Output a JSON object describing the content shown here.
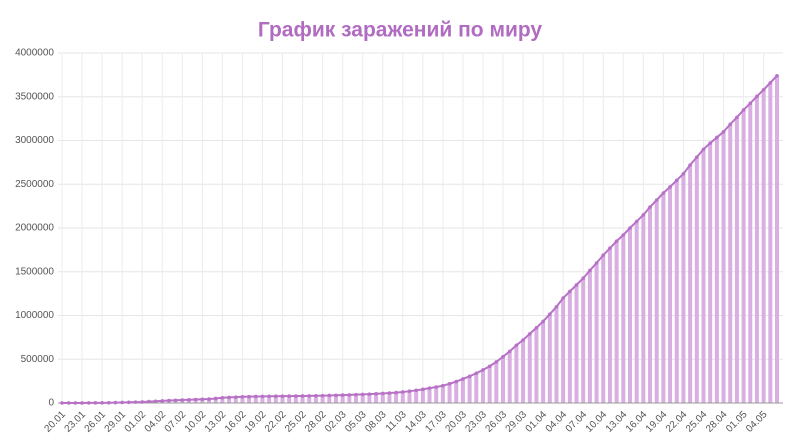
{
  "chart_data": {
    "type": "bar",
    "title": "График заражений по миру",
    "categories": [
      "20.01",
      null,
      null,
      "23.01",
      null,
      null,
      "26.01",
      null,
      null,
      "29.01",
      null,
      null,
      "01.02",
      null,
      null,
      "04.02",
      null,
      null,
      "07.02",
      null,
      null,
      "10.02",
      null,
      null,
      "13.02",
      null,
      null,
      "16.02",
      null,
      null,
      "19.02",
      null,
      null,
      "22.02",
      null,
      null,
      "25.02",
      null,
      null,
      "28.02",
      null,
      null,
      "02.03",
      null,
      null,
      "05.03",
      null,
      null,
      "08.03",
      null,
      null,
      "11.03",
      null,
      null,
      "14.03",
      null,
      null,
      "17.03",
      null,
      null,
      "20.03",
      null,
      null,
      "23.03",
      null,
      null,
      "26.03",
      null,
      null,
      "29.03",
      null,
      null,
      "01.04",
      null,
      null,
      "04.04",
      null,
      null,
      "07.04",
      null,
      null,
      "10.04",
      null,
      null,
      "13.04",
      null,
      null,
      "16.04",
      null,
      null,
      "19.04",
      null,
      null,
      "22.04",
      null,
      null,
      "25.04",
      null,
      null,
      "28.04",
      null,
      null,
      "01.05",
      null,
      null,
      "04.05",
      null,
      null
    ],
    "values": [
      282,
      400,
      530,
      650,
      1300,
      1700,
      2100,
      3000,
      4500,
      6000,
      8000,
      10000,
      12000,
      16000,
      20000,
      24000,
      28000,
      31000,
      34000,
      37000,
      40000,
      43000,
      45000,
      52000,
      60000,
      64000,
      67000,
      71000,
      73000,
      74500,
      75600,
      76600,
      77600,
      78600,
      79200,
      79800,
      80400,
      81400,
      82700,
      84100,
      86000,
      88300,
      90300,
      92800,
      95200,
      97900,
      101500,
      105500,
      109000,
      114000,
      119000,
      126000,
      135000,
      145000,
      157000,
      170000,
      183000,
      198000,
      220000,
      245000,
      275000,
      305000,
      340000,
      378000,
      420000,
      470000,
      529000,
      590000,
      660000,
      720000,
      790000,
      860000,
      932000,
      1015000,
      1100000,
      1200000,
      1275000,
      1350000,
      1426000,
      1515000,
      1600000,
      1690000,
      1770000,
      1850000,
      1920000,
      2000000,
      2075000,
      2150000,
      2240000,
      2320000,
      2400000,
      2470000,
      2545000,
      2620000,
      2720000,
      2810000,
      2900000,
      2970000,
      3035000,
      3100000,
      3185000,
      3265000,
      3350000,
      3425000,
      3505000,
      3580000,
      3660000,
      3740000
    ],
    "color": "#d9aee2",
    "line_color": "#b772c6",
    "line_overlay": true,
    "ylim": [
      0,
      4000000
    ],
    "yticks": [
      0,
      500000,
      1000000,
      1500000,
      2000000,
      2500000,
      3000000,
      3500000,
      4000000
    ],
    "grid": true
  }
}
